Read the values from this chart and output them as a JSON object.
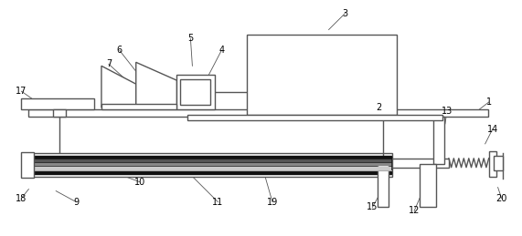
{
  "background_color": "#ffffff",
  "line_color": "#555555",
  "lw": 1.0,
  "figsize": [
    5.71,
    2.59
  ],
  "dpi": 100,
  "labels_data": [
    [
      "1",
      536,
      112,
      523,
      122
    ],
    [
      "2",
      415,
      118,
      400,
      126
    ],
    [
      "3",
      378,
      14,
      360,
      32
    ],
    [
      "4",
      242,
      55,
      228,
      82
    ],
    [
      "5",
      208,
      42,
      210,
      72
    ],
    [
      "6",
      130,
      55,
      148,
      78
    ],
    [
      "7",
      118,
      70,
      140,
      90
    ],
    [
      "9",
      82,
      222,
      60,
      210
    ],
    [
      "10",
      152,
      200,
      120,
      188
    ],
    [
      "11",
      238,
      222,
      210,
      194
    ],
    [
      "12",
      454,
      232,
      460,
      218
    ],
    [
      "13",
      490,
      122,
      488,
      136
    ],
    [
      "14",
      540,
      142,
      532,
      158
    ],
    [
      "15",
      408,
      228,
      418,
      210
    ],
    [
      "17",
      22,
      100,
      42,
      114
    ],
    [
      "18",
      22,
      218,
      30,
      208
    ],
    [
      "19",
      298,
      222,
      290,
      194
    ],
    [
      "20",
      550,
      218,
      546,
      206
    ]
  ]
}
